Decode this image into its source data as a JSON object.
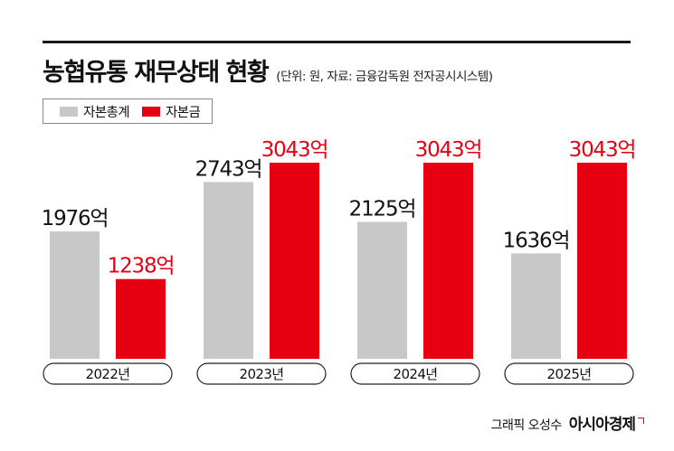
{
  "header": {
    "title": "농협유통 재무상태 현황",
    "subtitle": "(단위: 원, 자료: 금융감독원 전자공시시스템)"
  },
  "legend": [
    {
      "label": "자본총계",
      "color": "#c8c8c8"
    },
    {
      "label": "자본금",
      "color": "#e60012"
    }
  ],
  "chart_data": {
    "type": "bar",
    "title": "농협유통 재무상태 현황",
    "categories": [
      "2022년",
      "2023년",
      "2024년",
      "2025년"
    ],
    "series": [
      {
        "name": "자본총계",
        "values": [
          1976,
          2743,
          2125,
          1636
        ],
        "labels": [
          "1976억",
          "2743억",
          "2125억",
          "1636억"
        ],
        "color": "#c8c8c8"
      },
      {
        "name": "자본금",
        "values": [
          1238,
          3043,
          3043,
          3043
        ],
        "labels": [
          "1238억",
          "3043억",
          "3043억",
          "3043억"
        ],
        "color": "#e60012"
      }
    ],
    "label_colors": [
      "#111111",
      "#e60012"
    ],
    "ylim": [
      0,
      3043
    ],
    "grid": false,
    "legend_position": "top-left"
  },
  "footer": {
    "credit": "그래픽 오성수",
    "brand": "아시아경제"
  }
}
